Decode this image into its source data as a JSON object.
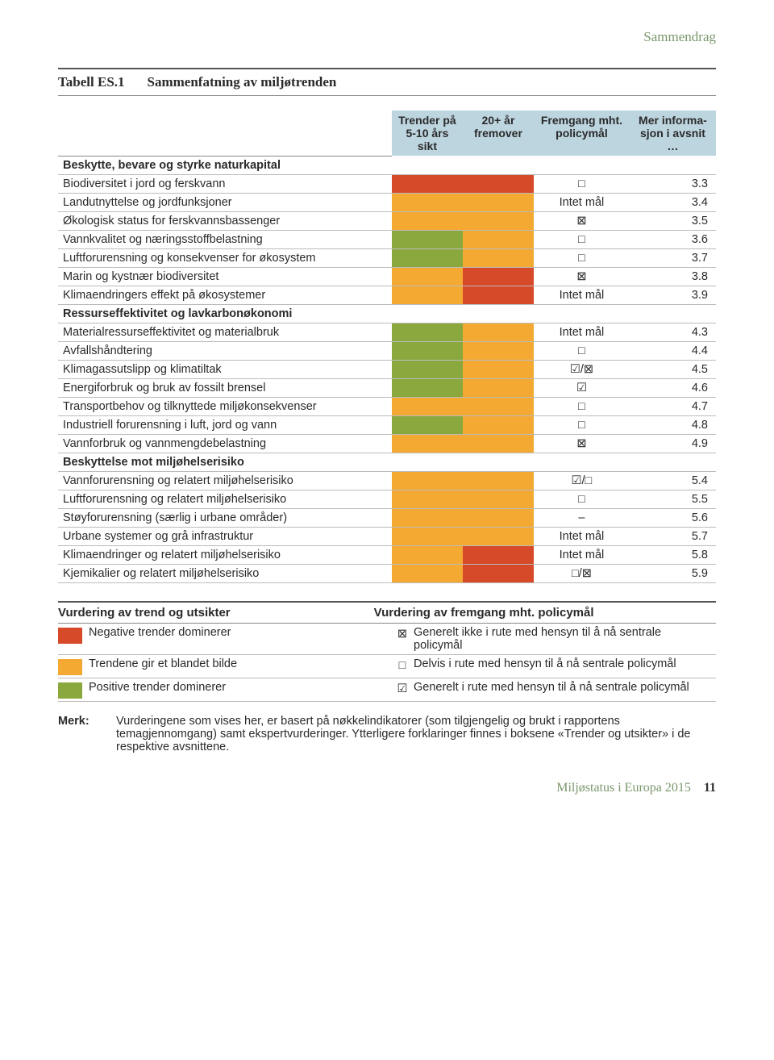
{
  "colors": {
    "red": "#d64a2a",
    "orange": "#f4a933",
    "green": "#8aa83e",
    "header_bg": "#bdd5df",
    "section_label": "#7a986c"
  },
  "symbols": {
    "empty_square": "□",
    "x_square": "⊠",
    "check_square": "☑",
    "dash": "–"
  },
  "section_label": "Sammendrag",
  "table_number": "Tabell ES.1",
  "table_title": "Sammenfatning av miljøtrenden",
  "headers": {
    "c0": "",
    "c1": "Trender på 5-10 års sikt",
    "c2": "20+ år fremover",
    "c3": "Fremgang mht. policymål",
    "c4": "Mer informa­sjon i avsnit …"
  },
  "rows": [
    {
      "type": "section",
      "label": "Beskytte, bevare og styrke naturkapital"
    },
    {
      "type": "data",
      "label": "Biodiversitet i jord og ferskvann",
      "c1": "red",
      "c2": "red",
      "sym": "empty_square",
      "ref": "3.3"
    },
    {
      "type": "data",
      "label": "Landutnyttelse og jordfunksjoner",
      "c1": "orange",
      "c2": "orange",
      "sym": "text",
      "symText": "Intet mål",
      "ref": "3.4"
    },
    {
      "type": "data",
      "label": "Økologisk status for ferskvannsbassenger",
      "c1": "orange",
      "c2": "orange",
      "sym": "x_square",
      "ref": "3.5"
    },
    {
      "type": "data",
      "label": "Vannkvalitet og næringsstoffbelastning",
      "c1": "green",
      "c2": "orange",
      "sym": "empty_square",
      "ref": "3.6"
    },
    {
      "type": "data",
      "label": "Luftforurensning og konsekvenser for økosystem",
      "c1": "green",
      "c2": "orange",
      "sym": "empty_square",
      "ref": "3.7"
    },
    {
      "type": "data",
      "label": "Marin og kystnær biodiversitet",
      "c1": "orange",
      "c2": "red",
      "sym": "x_square",
      "ref": "3.8"
    },
    {
      "type": "data",
      "label": "Klimaendringers effekt på økosystemer",
      "c1": "orange",
      "c2": "red",
      "sym": "text",
      "symText": "Intet mål",
      "ref": "3.9"
    },
    {
      "type": "section",
      "label": "Ressurseffektivitet og lavkarbonøkonomi"
    },
    {
      "type": "data",
      "label": "Materialressurseffektivitet og materialbruk",
      "c1": "green",
      "c2": "orange",
      "sym": "text",
      "symText": "Intet mål",
      "ref": "4.3"
    },
    {
      "type": "data",
      "label": "Avfallshåndtering",
      "c1": "green",
      "c2": "orange",
      "sym": "empty_square",
      "ref": "4.4"
    },
    {
      "type": "data",
      "label": "Klimagassutslipp og klimatiltak",
      "c1": "green",
      "c2": "orange",
      "sym": "pair",
      "symText": "check_square/x_square",
      "ref": "4.5"
    },
    {
      "type": "data",
      "label": "Energiforbruk og bruk av fossilt brensel",
      "c1": "green",
      "c2": "orange",
      "sym": "check_square",
      "ref": "4.6"
    },
    {
      "type": "data",
      "label": "Transportbehov og tilknyttede miljøkonsekvenser",
      "c1": "orange",
      "c2": "orange",
      "sym": "empty_square",
      "ref": "4.7"
    },
    {
      "type": "data",
      "label": "Industriell forurensning i luft, jord og vann",
      "c1": "green",
      "c2": "orange",
      "sym": "empty_square",
      "ref": "4.8"
    },
    {
      "type": "data",
      "label": "Vannforbruk og vannmengdebelastning",
      "c1": "orange",
      "c2": "orange",
      "sym": "x_square",
      "ref": "4.9"
    },
    {
      "type": "section",
      "label": "Beskyttelse mot miljøhelserisiko"
    },
    {
      "type": "data",
      "label": "Vannforurensning og relatert miljøhelserisiko",
      "c1": "orange",
      "c2": "orange",
      "sym": "pair",
      "symText": "check_square/empty_square",
      "ref": "5.4"
    },
    {
      "type": "data",
      "label": "Luftforurensning og relatert miljøhelserisiko",
      "c1": "orange",
      "c2": "orange",
      "sym": "empty_square",
      "ref": "5.5"
    },
    {
      "type": "data",
      "label": "Støyforurensning (særlig i urbane områder)",
      "c1": "orange",
      "c2": "orange",
      "sym": "dash",
      "ref": "5.6"
    },
    {
      "type": "data",
      "label": "Urbane systemer og grå infrastruktur",
      "c1": "orange",
      "c2": "orange",
      "sym": "text",
      "symText": "Intet mål",
      "ref": "5.7"
    },
    {
      "type": "data",
      "label": "Klimaendringer og relatert miljøhelserisiko",
      "c1": "orange",
      "c2": "red",
      "sym": "text",
      "symText": "Intet mål",
      "ref": "5.8"
    },
    {
      "type": "data",
      "label": "Kjemikalier og relatert miljøhelserisiko",
      "c1": "orange",
      "c2": "red",
      "sym": "pair",
      "symText": "empty_square/x_square",
      "ref": "5.9"
    }
  ],
  "legend": {
    "h1": "Vurdering av trend og utsikter",
    "h2": "Vurdering av fremgang mht. policymål",
    "rows": [
      {
        "color": "red",
        "t1": "Negative trender dominerer",
        "sym": "x_square",
        "t2": "Generelt ikke i rute med hensyn til å nå sentrale policymål"
      },
      {
        "color": "orange",
        "t1": "Trendene gir et blandet bilde",
        "sym": "empty_square",
        "t2": "Delvis i rute med hensyn til å nå sentrale policymål"
      },
      {
        "color": "green",
        "t1": "Positive trender dominerer",
        "sym": "check_square",
        "t2": "Generelt i rute med hensyn til å nå sentrale policymål"
      }
    ]
  },
  "note_label": "Merk:",
  "note_body": "Vurderingene som vises her, er basert på nøkkelindikatorer (som tilgjengelig og brukt i rapportens temagjennomgang) samt ekspertvurderinger. Ytterligere forklaringer finnes i boksene «Trender og utsikter» i de respektive avsnittene.",
  "footer_title": "Miljøstatus i Europa 2015",
  "footer_page": "11"
}
